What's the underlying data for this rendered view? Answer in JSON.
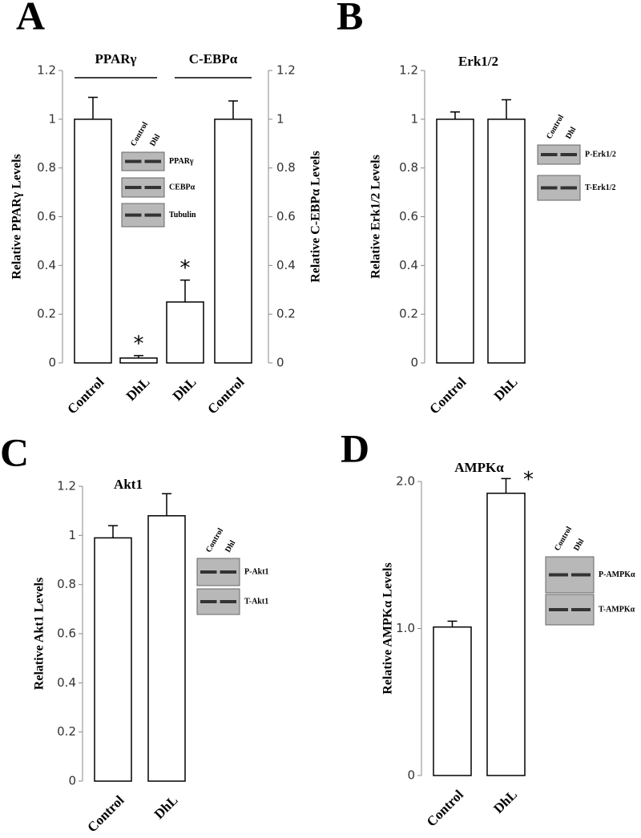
{
  "chart_data": [
    {
      "type": "bar",
      "panel": "A",
      "ylabel": "Relative PPARγ Levels",
      "y2label": "Relative C-EBPα Levels",
      "categories": [
        "Control",
        "DhL",
        "DhL",
        "Control"
      ],
      "series": [
        {
          "name": "PPARγ",
          "color": "#ffffff",
          "values": [
            1.0,
            0.02,
            null,
            null
          ],
          "errors": [
            0.09,
            0.01,
            null,
            null
          ],
          "annotations": [
            null,
            "*",
            null,
            null
          ]
        },
        {
          "name": "C-EBPα",
          "color": "#ffffff",
          "axis": "y2",
          "values": [
            null,
            null,
            0.25,
            1.0
          ],
          "errors": [
            null,
            null,
            0.09,
            0.075
          ],
          "annotations": [
            null,
            null,
            "*",
            null
          ]
        }
      ],
      "ylim": [
        0,
        1.2
      ],
      "yticks": [
        0,
        0.2,
        0.4,
        0.6,
        0.8,
        1,
        1.2
      ],
      "y2lim": [
        0,
        1.2
      ],
      "y2ticks": [
        0,
        0.2,
        0.4,
        0.6,
        0.8,
        1,
        1.2
      ],
      "blot": {
        "lanes": [
          "Control",
          "Dhl"
        ],
        "rows": [
          "PPARγ",
          "CEBPα",
          "Tubulin"
        ]
      }
    },
    {
      "type": "bar",
      "panel": "B",
      "title": "Erk1/2",
      "ylabel": "Relative  Erk1/2 Levels",
      "categories": [
        "Control",
        "DhL"
      ],
      "series": [
        {
          "color": "#ffffff",
          "values": [
            1.0,
            1.0
          ],
          "errors": [
            0.03,
            0.08
          ]
        }
      ],
      "ylim": [
        0,
        1.2
      ],
      "yticks": [
        0,
        0.2,
        0.4,
        0.6,
        0.8,
        1,
        1.2
      ],
      "blot": {
        "lanes": [
          "Control",
          "Dhl"
        ],
        "rows": [
          "P-Erk1/2",
          "T-Erk1/2"
        ]
      }
    },
    {
      "type": "bar",
      "panel": "C",
      "title": "Akt1",
      "ylabel": "Relative  Akt1 Levels",
      "categories": [
        "Control",
        "DhL"
      ],
      "series": [
        {
          "color": "#ffffff",
          "values": [
            0.99,
            1.08
          ],
          "errors": [
            0.05,
            0.09
          ]
        }
      ],
      "ylim": [
        0,
        1.2
      ],
      "yticks": [
        0,
        0.2,
        0.4,
        0.6,
        0.8,
        1,
        1.2
      ],
      "blot": {
        "lanes": [
          "Control",
          "Dhl"
        ],
        "rows": [
          "P-Akt1",
          "T-Akt1"
        ]
      }
    },
    {
      "type": "bar",
      "panel": "D",
      "title": "AMPKα",
      "ylabel": "Relative  AMPKα Levels",
      "categories": [
        "Control",
        "DhL"
      ],
      "series": [
        {
          "color": "#ffffff",
          "values": [
            1.01,
            1.92
          ],
          "errors": [
            0.04,
            0.1
          ],
          "annotations": [
            null,
            "*"
          ]
        }
      ],
      "ylim": [
        0,
        2.0
      ],
      "yticks": [
        0,
        {
          "value": 1,
          "label": "1.0"
        },
        {
          "value": 2,
          "label": "2.0"
        }
      ],
      "blot": {
        "lanes": [
          "Control",
          "Dhl"
        ],
        "rows": [
          "P-AMPKα",
          "T-AMPKα"
        ]
      }
    }
  ]
}
